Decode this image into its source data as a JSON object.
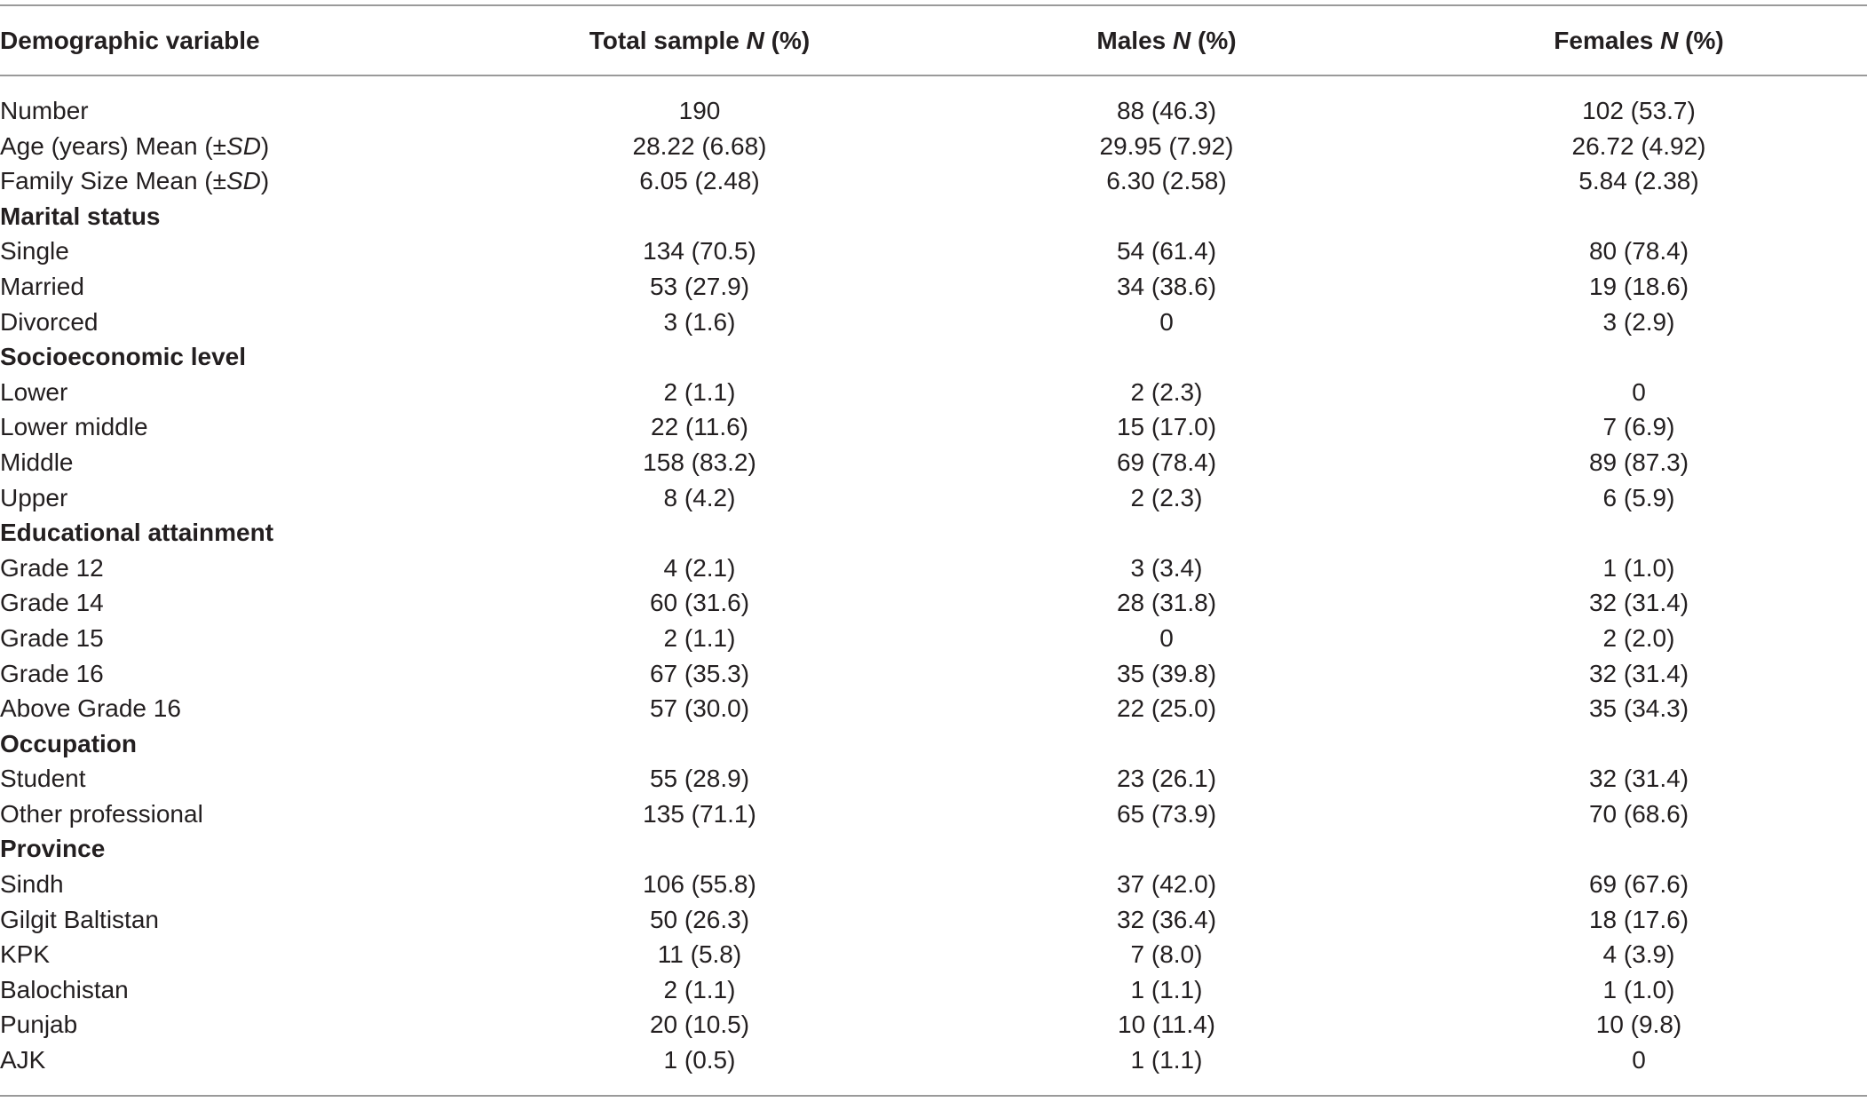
{
  "header": {
    "col0": "Demographic variable",
    "col1_prefix": "Total sample ",
    "col1_italic": "N",
    "col1_suffix": " (%)",
    "col2_prefix": "Males ",
    "col2_italic": "N",
    "col2_suffix": " (%)",
    "col3_prefix": "Females ",
    "col3_italic": "N",
    "col3_suffix": " (%)"
  },
  "rows": [
    {
      "label": "Number",
      "total": "190",
      "males": "88 (46.3)",
      "females": "102 (53.7)"
    },
    {
      "label_prefix": "Age (years) Mean (±",
      "label_italic": "SD",
      "label_suffix": ")",
      "total": "28.22 (6.68)",
      "males": "29.95 (7.92)",
      "females": "26.72 (4.92)"
    },
    {
      "label_prefix": "Family Size Mean (±",
      "label_italic": "SD",
      "label_suffix": ")",
      "total": "6.05 (2.48)",
      "males": "6.30 (2.58)",
      "females": "5.84 (2.38)"
    },
    {
      "label": "Marital status",
      "section": true
    },
    {
      "label": "Single",
      "total": "134 (70.5)",
      "males": "54 (61.4)",
      "females": "80 (78.4)"
    },
    {
      "label": "Married",
      "total": "53 (27.9)",
      "males": "34 (38.6)",
      "females": "19 (18.6)"
    },
    {
      "label": "Divorced",
      "total": "3 (1.6)",
      "males": "0",
      "females": "3 (2.9)"
    },
    {
      "label": "Socioeconomic level",
      "section": true
    },
    {
      "label": "Lower",
      "total": "2 (1.1)",
      "males": "2 (2.3)",
      "females": "0"
    },
    {
      "label": "Lower middle",
      "total": "22 (11.6)",
      "males": "15 (17.0)",
      "females": "7 (6.9)"
    },
    {
      "label": "Middle",
      "total": "158 (83.2)",
      "males": "69 (78.4)",
      "females": "89 (87.3)"
    },
    {
      "label": "Upper",
      "total": "8 (4.2)",
      "males": "2 (2.3)",
      "females": "6 (5.9)"
    },
    {
      "label": "Educational attainment",
      "section": true
    },
    {
      "label": "Grade 12",
      "total": "4 (2.1)",
      "males": "3 (3.4)",
      "females": "1 (1.0)"
    },
    {
      "label": "Grade 14",
      "total": "60 (31.6)",
      "males": "28 (31.8)",
      "females": "32 (31.4)"
    },
    {
      "label": "Grade 15",
      "total": "2 (1.1)",
      "males": "0",
      "females": "2 (2.0)"
    },
    {
      "label": "Grade 16",
      "total": "67 (35.3)",
      "males": "35 (39.8)",
      "females": "32 (31.4)"
    },
    {
      "label": "Above Grade 16",
      "total": "57 (30.0)",
      "males": "22 (25.0)",
      "females": "35 (34.3)"
    },
    {
      "label": "Occupation",
      "section": true
    },
    {
      "label": "Student",
      "total": "55 (28.9)",
      "males": "23 (26.1)",
      "females": "32 (31.4)"
    },
    {
      "label": "Other professional",
      "total": "135 (71.1)",
      "males": "65 (73.9)",
      "females": "70 (68.6)"
    },
    {
      "label": "Province",
      "section": true
    },
    {
      "label": "Sindh",
      "total": "106 (55.8)",
      "males": "37 (42.0)",
      "females": "69 (67.6)"
    },
    {
      "label": "Gilgit Baltistan",
      "total": "50 (26.3)",
      "males": "32 (36.4)",
      "females": "18 (17.6)"
    },
    {
      "label": "KPK",
      "total": "11 (5.8)",
      "males": "7 (8.0)",
      "females": "4 (3.9)"
    },
    {
      "label": "Balochistan",
      "total": "2 (1.1)",
      "males": "1 (1.1)",
      "females": "1 (1.0)"
    },
    {
      "label": "Punjab",
      "total": "20 (10.5)",
      "males": "10 (11.4)",
      "females": "10 (9.8)"
    },
    {
      "label": "AJK",
      "total": "1 (0.5)",
      "males": "1 (1.1)",
      "females": "0"
    }
  ]
}
